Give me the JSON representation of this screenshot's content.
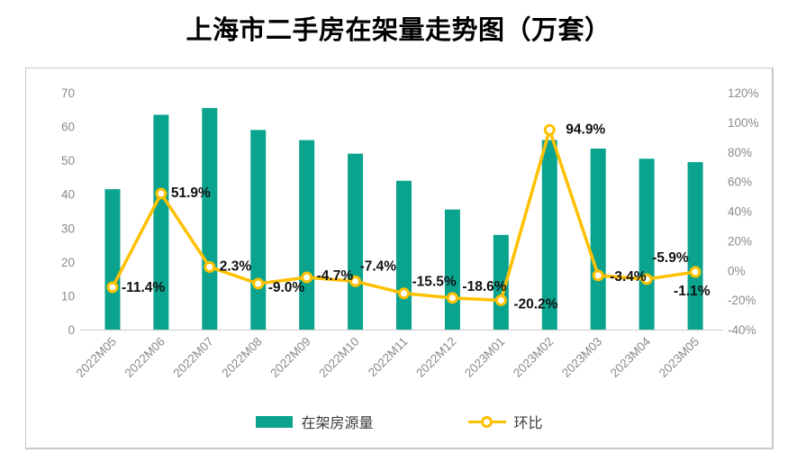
{
  "page": {
    "title": "上海市二手房在架量走势图（万套）"
  },
  "chart_data": {
    "type": "combo-bar-line",
    "title": "上海市二手房在架量走势图（万套）",
    "categories": [
      "2022M05",
      "2022M06",
      "2022M07",
      "2022M08",
      "2022M09",
      "2022M10",
      "2022M11",
      "2022M12",
      "2023M01",
      "2023M02",
      "2023M03",
      "2023M04",
      "2023M05"
    ],
    "series": [
      {
        "name": "在架房源量",
        "type": "bar",
        "axis": "left",
        "values": [
          41.5,
          63.5,
          65.5,
          59,
          56,
          52,
          44,
          35.5,
          28,
          56,
          53.5,
          50.5,
          49.5
        ]
      },
      {
        "name": "环比",
        "type": "line",
        "axis": "right",
        "values": [
          -11.4,
          51.9,
          2.3,
          -9.0,
          -4.7,
          -7.4,
          -15.5,
          -18.6,
          -20.2,
          94.9,
          -3.4,
          -5.9,
          -1.1
        ],
        "point_labels": [
          "-11.4%",
          "51.9%",
          "2.3%",
          "-9.0%",
          "-4.7%",
          "-7.4%",
          "-15.5%",
          "-18.6%",
          "-20.2%",
          "94.9%",
          "-3.4%",
          "-5.9%",
          "-1.1%"
        ]
      }
    ],
    "left_axis": {
      "min": 0,
      "max": 70,
      "step": 10,
      "ticks": [
        "0",
        "10",
        "20",
        "30",
        "40",
        "50",
        "60",
        "70"
      ]
    },
    "right_axis": {
      "min": -40,
      "max": 120,
      "step": 20,
      "ticks": [
        "-40%",
        "-20%",
        "0%",
        "20%",
        "40%",
        "60%",
        "80%",
        "100%",
        "120%"
      ]
    },
    "grid": false,
    "legend_position": "bottom"
  },
  "colors": {
    "bar": "#0aa48e",
    "line": "#ffc000",
    "marker_fill": "#ffffff",
    "axis_text": "#8a8a8a",
    "label_text": "#111111",
    "axis_line": "#d9d9d9",
    "legend_text": "#3d3d3d",
    "card_border": "#c9c9c9"
  }
}
